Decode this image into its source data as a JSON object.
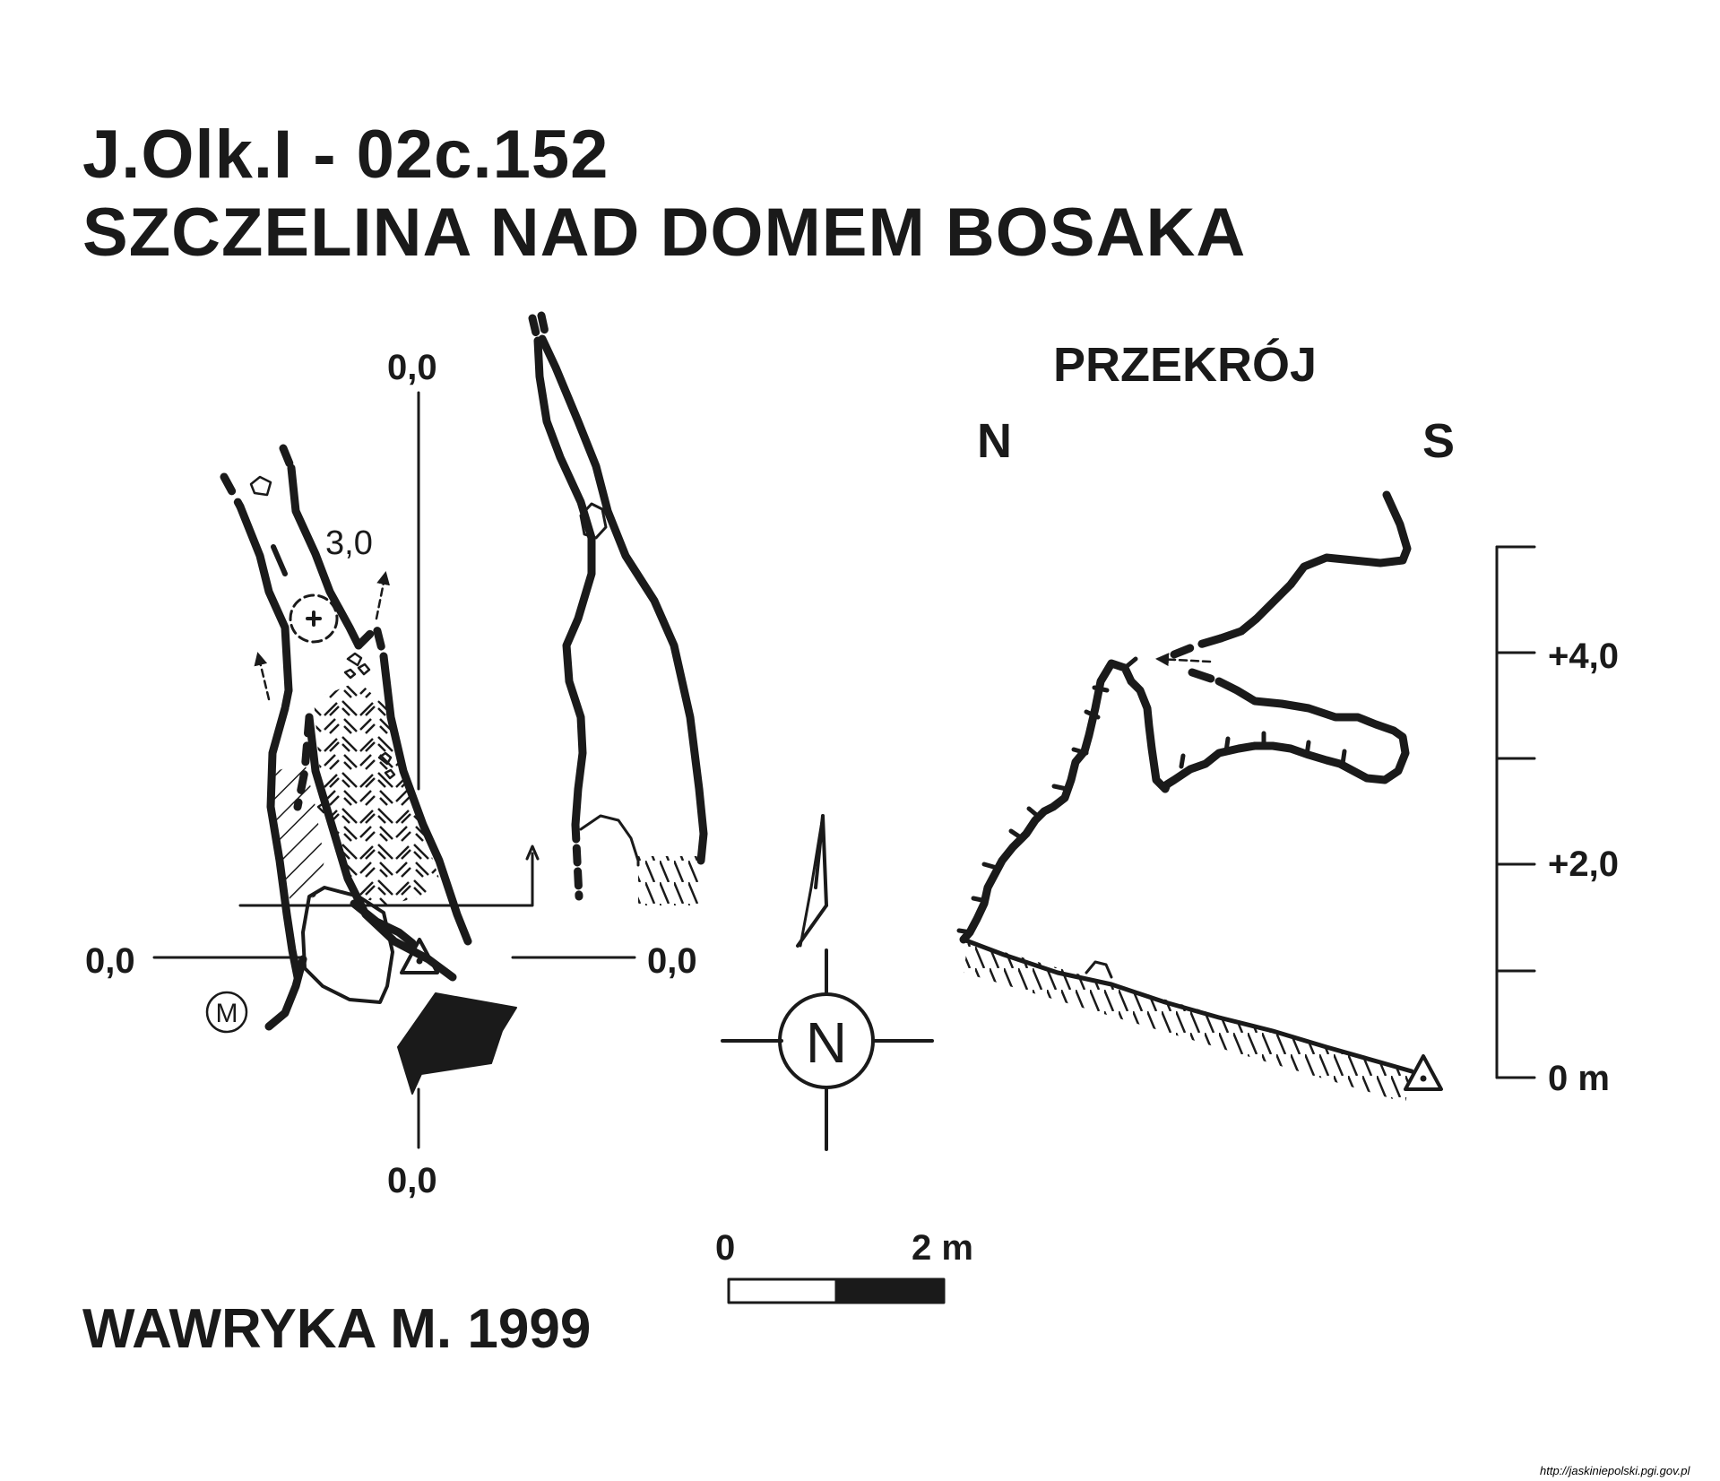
{
  "title": {
    "code": "J.Olk.I - 02c.152",
    "name": "SZCZELINA NAD DOMEM BOSAKA"
  },
  "plan": {
    "label_top": "0,0",
    "label_left": "0,0",
    "label_right": "0,0",
    "label_bottom": "0,0",
    "depth_label": "3,0",
    "marker_m": "M"
  },
  "section": {
    "title": "PRZEKRÓJ",
    "dir_left": "N",
    "dir_right": "S",
    "scale_ticks": [
      "+4,0",
      "+2,0",
      "0 m"
    ]
  },
  "compass": {
    "letter": "N"
  },
  "scale_bar": {
    "start": "0",
    "end": "2 m"
  },
  "author": "WAWRYKA M. 1999",
  "source_url": "http://jaskiniepolski.pgi.gov.pl",
  "colors": {
    "ink": "#1a1a1a",
    "background": "#ffffff"
  }
}
